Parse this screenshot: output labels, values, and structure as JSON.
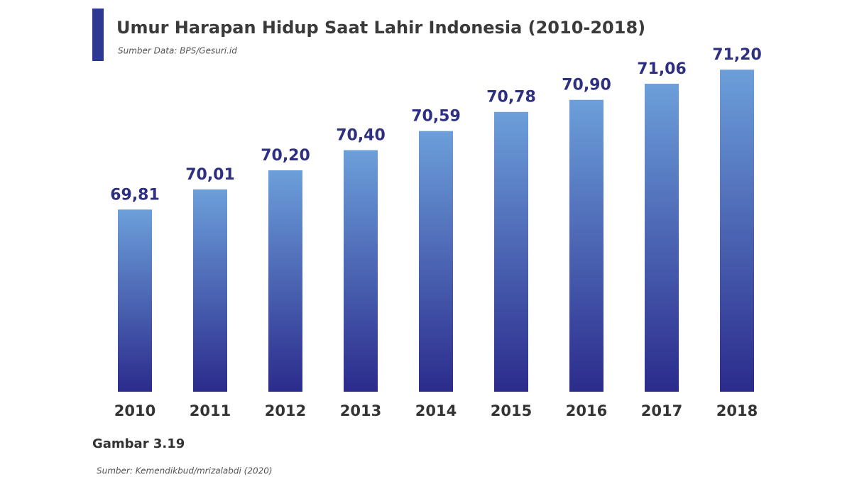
{
  "chart_data": {
    "type": "bar",
    "title": "Umur Harapan Hidup Saat Lahir Indonesia (2010-2018)",
    "subtitle": "Sumber Data: BPS/Gesuri.id",
    "categories": [
      "2010",
      "2011",
      "2012",
      "2013",
      "2014",
      "2015",
      "2016",
      "2017",
      "2018"
    ],
    "values": [
      69.81,
      70.01,
      70.2,
      70.4,
      70.59,
      70.78,
      70.9,
      71.06,
      71.2
    ],
    "value_labels": [
      "69,81",
      "70,01",
      "70,20",
      "70,40",
      "70,59",
      "70,78",
      "70,90",
      "71,06",
      "71,20"
    ],
    "gradient": [
      "#6c9fda",
      "#2b2b8c"
    ],
    "ylim": [
      68,
      71.3
    ],
    "caption": "Gambar 3.19",
    "source": "Sumber: Kemendikbud/mrizalabdi (2020)"
  }
}
